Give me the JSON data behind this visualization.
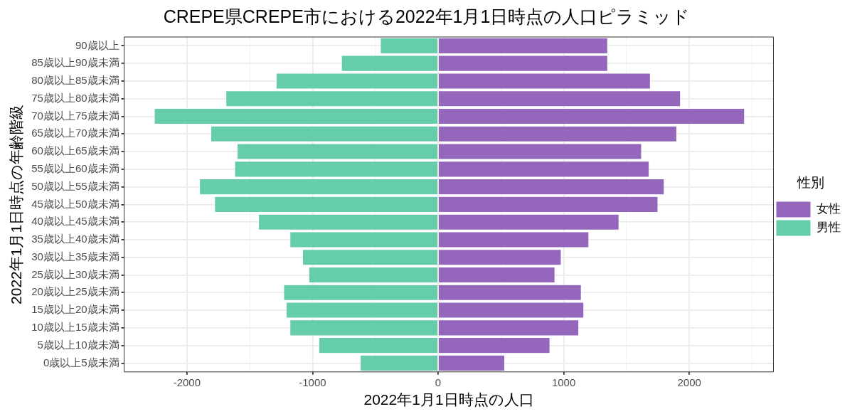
{
  "chart_data": {
    "type": "bar",
    "orientation": "horizontal",
    "stacked": true,
    "title": "CREPE県CREPE市における2022年1月1日時点の人口ピラミッド",
    "xlabel": "2022年1月1日時点の人口",
    "ylabel": "2022年1月1日時点の年齢階級",
    "legend_title": "性別",
    "legend": "right",
    "grid": true,
    "categories": [
      "90歳以上",
      "85歳以上90歳未満",
      "80歳以上85歳未満",
      "75歳以上80歳未満",
      "70歳以上75歳未満",
      "65歳以上70歳未満",
      "60歳以上65歳未満",
      "55歳以上60歳未満",
      "50歳以上55歳未満",
      "45歳以上50歳未満",
      "40歳以上45歳未満",
      "35歳以上40歳未満",
      "30歳以上35歳未満",
      "25歳以上30歳未満",
      "20歳以上25歳未満",
      "15歳以上20歳未満",
      "10歳以上15歳未満",
      "5歳以上10歳未満",
      "0歳以上5歳未満"
    ],
    "series": [
      {
        "name": "女性",
        "color": "#9467bd",
        "values": [
          1350,
          1350,
          1690,
          1930,
          2440,
          1900,
          1620,
          1680,
          1800,
          1750,
          1440,
          1200,
          980,
          930,
          1140,
          1160,
          1120,
          890,
          530
        ]
      },
      {
        "name": "男性",
        "color": "#66cdaa",
        "values": [
          -460,
          -770,
          -1290,
          -1690,
          -2260,
          -1810,
          -1600,
          -1620,
          -1900,
          -1780,
          -1430,
          -1180,
          -1080,
          -1030,
          -1230,
          -1210,
          -1180,
          -950,
          -620
        ]
      }
    ],
    "xlim": [
      -2500,
      2670
    ],
    "xticks": [
      {
        "value": -2500,
        "label": null
      },
      -2000,
      {
        "value": -1500,
        "label": null
      },
      -1000,
      {
        "value": -500,
        "label": null
      },
      0,
      {
        "value": 500,
        "label": null
      },
      1000,
      {
        "value": 1500,
        "label": null
      },
      2000,
      {
        "value": 2500,
        "label": null
      }
    ]
  }
}
